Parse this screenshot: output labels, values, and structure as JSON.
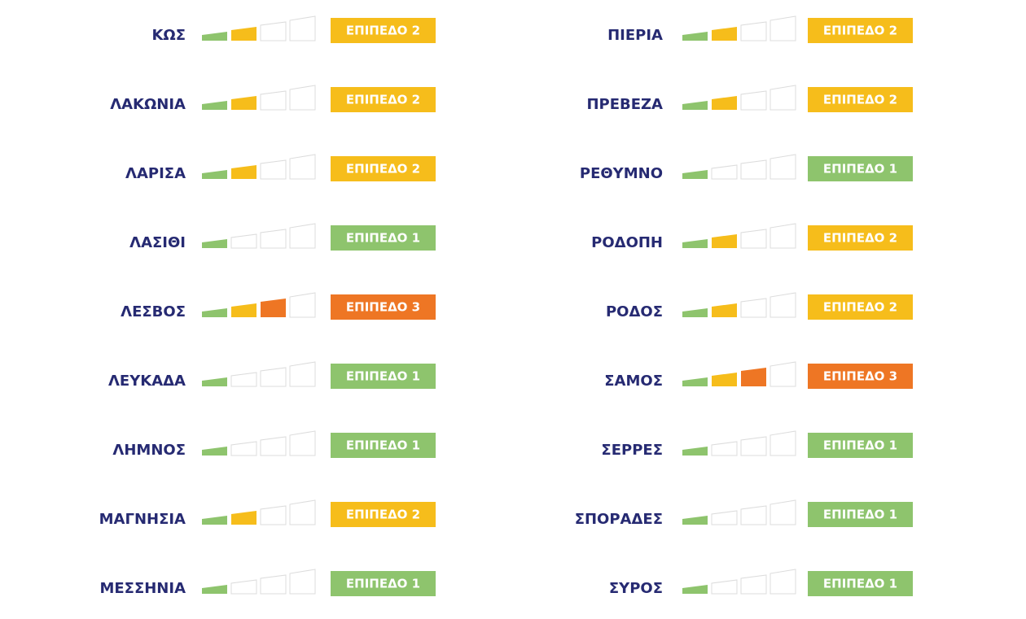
{
  "level_colors": [
    "#8ec46d",
    "#f6bd1b",
    "#ee7624"
  ],
  "columns": [
    {
      "rows": [
        {
          "name": "ΚΩΣ",
          "level": 2,
          "label": "ΕΠΙΠΕΔΟ 2"
        },
        {
          "name": "ΛΑΚΩΝΙΑ",
          "level": 2,
          "label": "ΕΠΙΠΕΔΟ 2"
        },
        {
          "name": "ΛΑΡΙΣΑ",
          "level": 2,
          "label": "ΕΠΙΠΕΔΟ 2"
        },
        {
          "name": "ΛΑΣΙΘΙ",
          "level": 1,
          "label": "ΕΠΙΠΕΔΟ 1"
        },
        {
          "name": "ΛΕΣΒΟΣ",
          "level": 3,
          "label": "ΕΠΙΠΕΔΟ 3"
        },
        {
          "name": "ΛΕΥΚΑΔΑ",
          "level": 1,
          "label": "ΕΠΙΠΕΔΟ 1"
        },
        {
          "name": "ΛΗΜΝΟΣ",
          "level": 1,
          "label": "ΕΠΙΠΕΔΟ 1"
        },
        {
          "name": "ΜΑΓΝΗΣΙΑ",
          "level": 2,
          "label": "ΕΠΙΠΕΔΟ 2"
        },
        {
          "name": "ΜΕΣΣΗΝΙΑ",
          "level": 1,
          "label": "ΕΠΙΠΕΔΟ 1"
        }
      ]
    },
    {
      "rows": [
        {
          "name": "ΠΙΕΡΙΑ",
          "level": 2,
          "label": "ΕΠΙΠΕΔΟ 2"
        },
        {
          "name": "ΠΡΕΒΕΖΑ",
          "level": 2,
          "label": "ΕΠΙΠΕΔΟ 2"
        },
        {
          "name": "ΡΕΘΥΜΝΟ",
          "level": 1,
          "label": "ΕΠΙΠΕΔΟ 1"
        },
        {
          "name": "ΡΟΔΟΠΗ",
          "level": 2,
          "label": "ΕΠΙΠΕΔΟ 2"
        },
        {
          "name": "ΡΟΔΟΣ",
          "level": 2,
          "label": "ΕΠΙΠΕΔΟ 2"
        },
        {
          "name": "ΣΑΜΟΣ",
          "level": 3,
          "label": "ΕΠΙΠΕΔΟ 3"
        },
        {
          "name": "ΣΕΡΡΕΣ",
          "level": 1,
          "label": "ΕΠΙΠΕΔΟ 1"
        },
        {
          "name": "ΣΠΟΡΑΔΕΣ",
          "level": 1,
          "label": "ΕΠΙΠΕΔΟ 1"
        },
        {
          "name": "ΣΥΡΟΣ",
          "level": 1,
          "label": "ΕΠΙΠΕΔΟ 1"
        }
      ]
    }
  ]
}
